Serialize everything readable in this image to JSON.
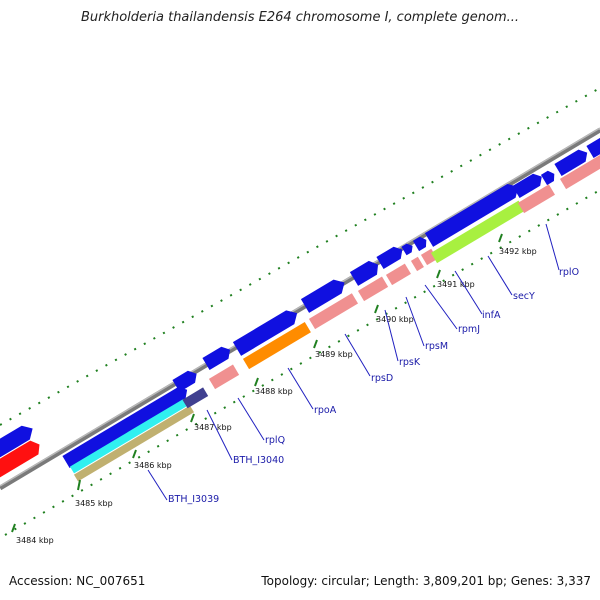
{
  "title": "Burkholderia thailandensis E264 chromosome I, complete genom...",
  "footer": {
    "accession": "Accession: NC_007651",
    "summary": "Topology: circular; Length: 3,809,201 bp; Genes: 3,337"
  },
  "colors": {
    "cds_arrow": "#1010e0",
    "rRNA_like_pink": "#f09090",
    "secY_green": "#a8f040",
    "rpoA_orange": "#ff8c00",
    "cyan_gene": "#30f0f0",
    "khaki_gene": "#c0b070",
    "purple_gene": "#404090",
    "red_gene": "#ff1010",
    "backbone": "#888888",
    "tick_green": "#208020",
    "label_blue": "#1a1aa8"
  },
  "kbp_ticks": [
    "3484 kbp",
    "3485 kbp",
    "3486 kbp",
    "3487 kbp",
    "3488 kbp",
    "3489 kbp",
    "3490 kbp",
    "3491 kbp",
    "3492 kbp"
  ],
  "gene_labels": [
    "BTH_I3039",
    "BTH_I3040",
    "rplQ",
    "rpoA",
    "rpsD",
    "rpsK",
    "rpsM",
    "rpmJ",
    "infA",
    "secY",
    "rplO"
  ]
}
